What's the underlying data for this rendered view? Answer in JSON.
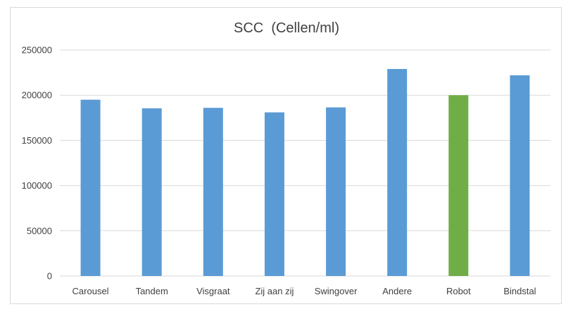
{
  "chart_data": {
    "type": "bar",
    "title": "SCC  (Cellen/ml)",
    "xlabel": "",
    "ylabel": "",
    "categories": [
      "Carousel",
      "Tandem",
      "Visgraat",
      "Zij aan zij",
      "Swingover",
      "Andere",
      "Robot",
      "Bindstal"
    ],
    "values": [
      195000,
      185500,
      186000,
      181000,
      186500,
      229000,
      200000,
      222000
    ],
    "colors": [
      "#5b9bd5",
      "#5b9bd5",
      "#5b9bd5",
      "#5b9bd5",
      "#5b9bd5",
      "#5b9bd5",
      "#70ad47",
      "#5b9bd5"
    ],
    "ylim": [
      0,
      250000
    ],
    "yticks": [
      "0",
      "50000",
      "100000",
      "150000",
      "200000",
      "250000"
    ],
    "grid": true,
    "legend": "none"
  }
}
